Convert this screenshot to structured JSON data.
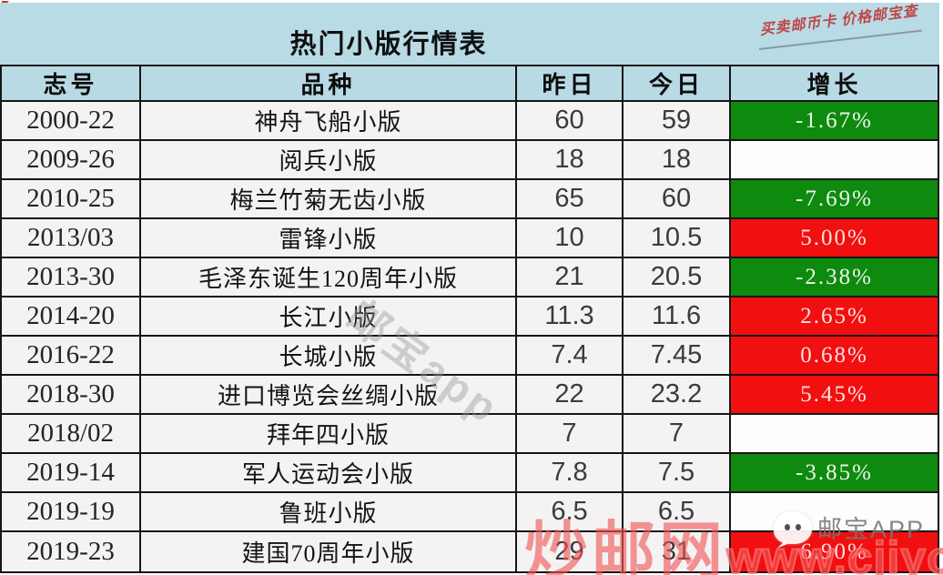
{
  "page": {
    "title": "热门小版行情表",
    "slogan": "买卖邮币卡 价格邮宝查"
  },
  "chart_data": {
    "type": "table",
    "title": "热门小版行情表",
    "columns": [
      "志号",
      "品种",
      "昨日",
      "今日",
      "增长"
    ],
    "rows": [
      {
        "code": "2000-22",
        "variety": "神舟飞船小版",
        "yesterday": "60",
        "today": "59",
        "growth": "-1.67%",
        "growth_state": "down"
      },
      {
        "code": "2009-26",
        "variety": "阅兵小版",
        "yesterday": "18",
        "today": "18",
        "growth": "",
        "growth_state": "flat"
      },
      {
        "code": "2010-25",
        "variety": "梅兰竹菊无齿小版",
        "yesterday": "65",
        "today": "60",
        "growth": "-7.69%",
        "growth_state": "down"
      },
      {
        "code": "2013/03",
        "variety": "雷锋小版",
        "yesterday": "10",
        "today": "10.5",
        "growth": "5.00%",
        "growth_state": "up"
      },
      {
        "code": "2013-30",
        "variety": "毛泽东诞生120周年小版",
        "yesterday": "21",
        "today": "20.5",
        "growth": "-2.38%",
        "growth_state": "down"
      },
      {
        "code": "2014-20",
        "variety": "长江小版",
        "yesterday": "11.3",
        "today": "11.6",
        "growth": "2.65%",
        "growth_state": "up"
      },
      {
        "code": "2016-22",
        "variety": "长城小版",
        "yesterday": "7.4",
        "today": "7.45",
        "growth": "0.68%",
        "growth_state": "up"
      },
      {
        "code": "2018-30",
        "variety": "进口博览会丝绸小版",
        "yesterday": "22",
        "today": "23.2",
        "growth": "5.45%",
        "growth_state": "up"
      },
      {
        "code": "2018/02",
        "variety": "拜年四小版",
        "yesterday": "7",
        "today": "7",
        "growth": "",
        "growth_state": "flat"
      },
      {
        "code": "2019-14",
        "variety": "军人运动会小版",
        "yesterday": "7.8",
        "today": "7.5",
        "growth": "-3.85%",
        "growth_state": "down"
      },
      {
        "code": "2019-19",
        "variety": "鲁班小版",
        "yesterday": "6.5",
        "today": "6.5",
        "growth": "",
        "growth_state": "flat"
      },
      {
        "code": "2019-23",
        "variety": "建国70周年小版",
        "yesterday": "29",
        "today": "31",
        "growth": "6.90%",
        "growth_state": "up"
      }
    ]
  },
  "watermarks": {
    "center": "邮宝app",
    "site_name": "炒邮网",
    "site_url": "www.cjiyou.net",
    "app_badge": "邮宝APP"
  },
  "colors": {
    "header_bg": "#b8dae5",
    "title_band_bg": "#b9dbe6",
    "growth_up_bg": "#f20f0f",
    "growth_down_bg": "#0e8a0e",
    "slogan_red": "#bd4747",
    "watermark_red": "#f05555"
  }
}
